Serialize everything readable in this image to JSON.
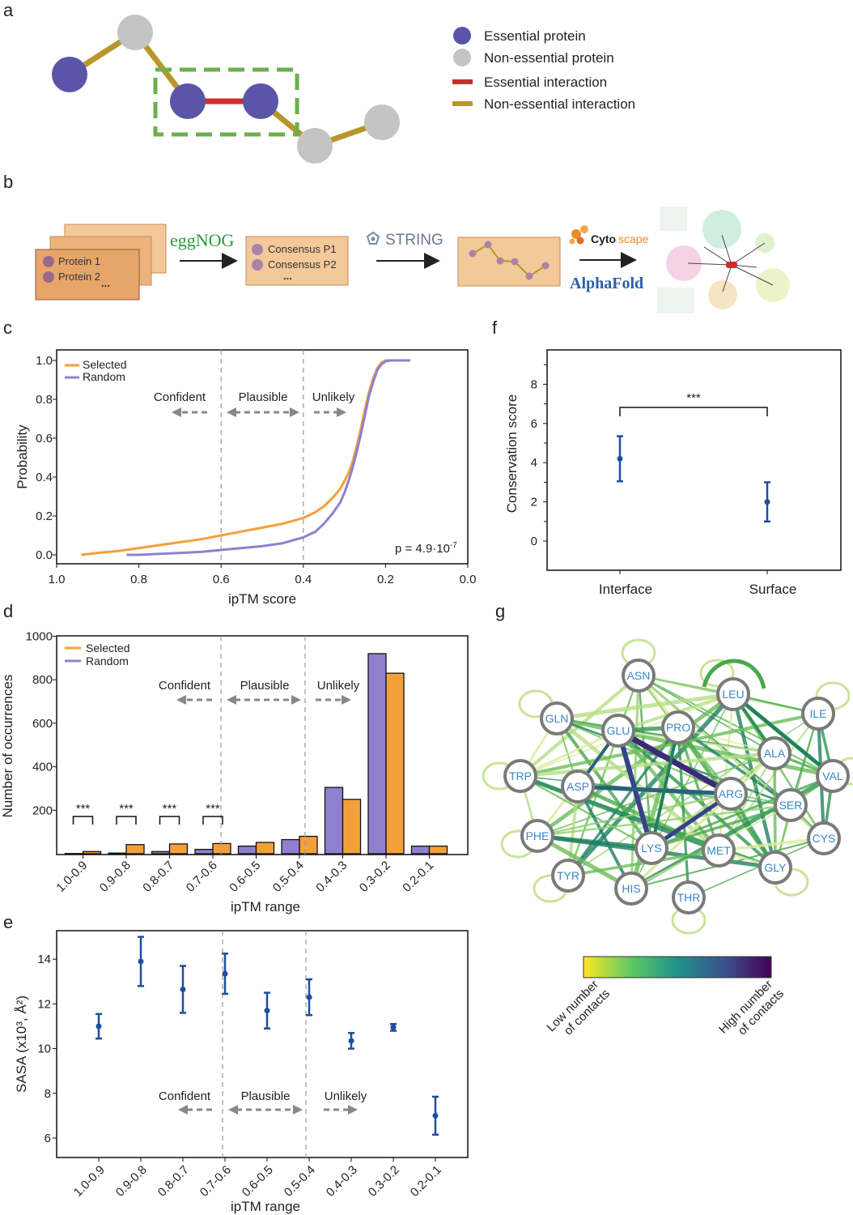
{
  "panels": {
    "a": "a",
    "b": "b",
    "c": "c",
    "d": "d",
    "e": "e",
    "f": "f",
    "g": "g"
  },
  "panel_a": {
    "legend": [
      "Essential protein",
      "Non-essential protein",
      "Essential interaction",
      "Non-essential interaction"
    ],
    "colors": {
      "essential": "#5b55a8",
      "nonessential": "#c4c4c4",
      "essential_edge": "#d02c2c",
      "nonessential_edge": "#b8962a",
      "box": "#6ab04c"
    }
  },
  "panel_b": {
    "protein1": "Protein 1",
    "protein2": "Protein 2",
    "dots": "...",
    "eggnog": "eggNOG",
    "consensus1": "Consensus P1",
    "consensus2": "Consensus P2",
    "string": "STRING",
    "cytoscape_a": "Cyto",
    "cytoscape_b": "scape",
    "alphafold": "AlphaFold"
  },
  "regions": {
    "confident": "Confident",
    "plausible": "Plausible",
    "unlikely": "Unlikely"
  },
  "chart_data": [
    {
      "id": "c",
      "type": "line",
      "xlabel": "ipTM score",
      "ylabel": "Probability",
      "xlim": [
        1.0,
        0.0
      ],
      "ylim": [
        0.0,
        1.0
      ],
      "xticks": [
        "1.0",
        "0.8",
        "0.6",
        "0.4",
        "0.2",
        "0.0"
      ],
      "yticks": [
        "0.0",
        "0.2",
        "0.4",
        "0.6",
        "0.8",
        "1.0"
      ],
      "vlines": [
        0.6,
        0.4
      ],
      "annotation": "p = 4.9·10",
      "annotation_exp": "-7",
      "series": [
        {
          "name": "Selected",
          "color": "#f4a03a",
          "x": [
            0.94,
            0.9,
            0.85,
            0.8,
            0.75,
            0.7,
            0.65,
            0.6,
            0.55,
            0.5,
            0.45,
            0.4,
            0.37,
            0.35,
            0.33,
            0.31,
            0.3,
            0.29,
            0.28,
            0.27,
            0.26,
            0.25,
            0.24,
            0.23,
            0.22,
            0.21,
            0.2,
            0.19,
            0.18,
            0.16,
            0.14
          ],
          "y": [
            0.0,
            0.01,
            0.02,
            0.035,
            0.05,
            0.065,
            0.08,
            0.1,
            0.12,
            0.14,
            0.16,
            0.19,
            0.22,
            0.25,
            0.29,
            0.34,
            0.38,
            0.42,
            0.48,
            0.56,
            0.65,
            0.75,
            0.84,
            0.91,
            0.96,
            0.99,
            1.0,
            1.0,
            1.0,
            1.0,
            1.0
          ]
        },
        {
          "name": "Random",
          "color": "#8f80cf",
          "x": [
            0.83,
            0.8,
            0.75,
            0.7,
            0.65,
            0.6,
            0.55,
            0.5,
            0.45,
            0.4,
            0.37,
            0.35,
            0.33,
            0.31,
            0.3,
            0.29,
            0.28,
            0.27,
            0.26,
            0.25,
            0.24,
            0.23,
            0.22,
            0.21,
            0.2,
            0.19,
            0.18,
            0.16,
            0.14
          ],
          "y": [
            0.0,
            0.0,
            0.005,
            0.01,
            0.015,
            0.025,
            0.035,
            0.045,
            0.06,
            0.09,
            0.12,
            0.16,
            0.21,
            0.27,
            0.32,
            0.38,
            0.45,
            0.53,
            0.62,
            0.72,
            0.82,
            0.89,
            0.95,
            0.98,
            0.995,
            1.0,
            1.0,
            1.0,
            1.0
          ]
        }
      ]
    },
    {
      "id": "d",
      "type": "bar",
      "xlabel": "ipTM range",
      "ylabel": "Number of occurrences",
      "ylim": [
        0,
        1000
      ],
      "yticks": [
        "200",
        "400",
        "600",
        "800",
        "1000"
      ],
      "categories": [
        "1.0-0.9",
        "0.9-0.8",
        "0.8-0.7",
        "0.7-0.6",
        "0.6-0.5",
        "0.5-0.4",
        "0.4-0.3",
        "0.3-0.2",
        "0.2-0.1"
      ],
      "significance": [
        "***",
        "***",
        "***",
        "***"
      ],
      "series": [
        {
          "name": "Selected",
          "color": "#f4a03a",
          "values": [
            10,
            42,
            45,
            47,
            52,
            80,
            250,
            830,
            35
          ]
        },
        {
          "name": "Random",
          "color": "#8f80cf",
          "values": [
            1,
            3,
            10,
            20,
            35,
            65,
            305,
            920,
            35
          ]
        }
      ]
    },
    {
      "id": "e",
      "type": "scatter",
      "xlabel": "ipTM range",
      "ylabel": "SASA (x10³, Å²)",
      "ylim": [
        5.5,
        15.3
      ],
      "yticks": [
        "6",
        "8",
        "10",
        "12",
        "14"
      ],
      "categories": [
        "1.0-0.9",
        "0.9-0.8",
        "0.8-0.7",
        "0.7-0.6",
        "0.6-0.5",
        "0.5-0.4",
        "0.4-0.3",
        "0.3-0.2",
        "0.2-0.1"
      ],
      "values": [
        11.0,
        13.9,
        12.65,
        13.35,
        11.7,
        12.3,
        10.35,
        10.95,
        7.0
      ],
      "errors": [
        0.55,
        1.1,
        1.05,
        0.9,
        0.8,
        0.8,
        0.35,
        0.15,
        0.85
      ],
      "color": "#1f4e9e"
    },
    {
      "id": "f",
      "type": "scatter",
      "xlabel": "",
      "ylabel": "Conservation score",
      "ylim": [
        -1.5,
        9.5
      ],
      "yticks": [
        "0",
        "2",
        "4",
        "6",
        "8"
      ],
      "categories": [
        "Interface",
        "Surface"
      ],
      "values": [
        4.2,
        2.0
      ],
      "errors": [
        1.15,
        1.0
      ],
      "significance": "***",
      "color": "#1f4e9e"
    }
  ],
  "panel_g": {
    "nodes": [
      "ASN",
      "LEU",
      "GLN",
      "GLU",
      "PRO",
      "ILE",
      "ALA",
      "TRP",
      "ASP",
      "VAL",
      "ARG",
      "SER",
      "PHE",
      "CYS",
      "LYS",
      "MET",
      "TYR",
      "GLY",
      "HIS",
      "THR"
    ],
    "colorbar_low": "Low number",
    "colorbar_low2": "of contacts",
    "colorbar_high": "High number",
    "colorbar_high2": "of contacts"
  }
}
